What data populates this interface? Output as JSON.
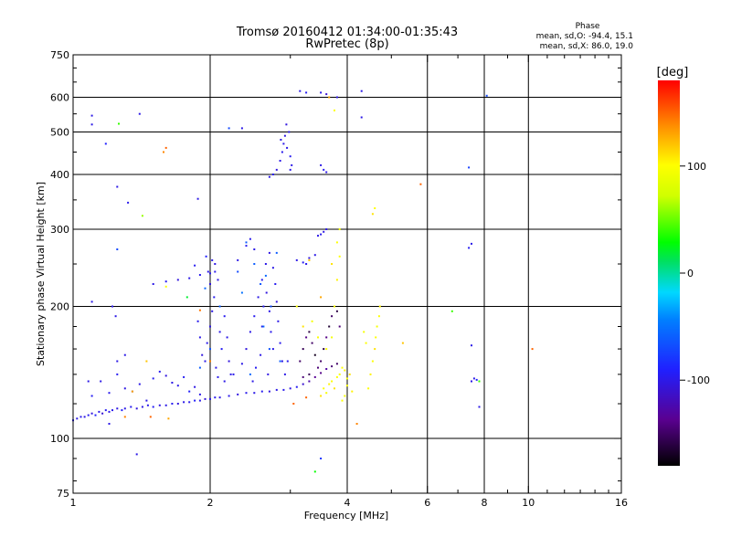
{
  "chart_data": {
    "type": "scatter",
    "title": "Tromsø 20160412 01:34:00-01:35:43",
    "subtitle": "RwPretec (8p)",
    "xlabel": "Frequency [MHz]",
    "ylabel": "Stationary phase Virtual Height [km]",
    "x_scale": "log",
    "y_scale": "log",
    "xlim": [
      1,
      16
    ],
    "ylim": [
      75,
      750
    ],
    "x_ticks": [
      1,
      2,
      4,
      6,
      8,
      10,
      16
    ],
    "x_tick_labels": [
      "1",
      "2",
      "4",
      "6",
      "8",
      "10",
      "16"
    ],
    "x_minor_ticks": [
      3,
      5,
      7,
      9,
      11,
      12,
      13,
      14,
      15
    ],
    "x_grid": [
      2,
      4,
      6,
      8,
      10
    ],
    "y_ticks": [
      75,
      100,
      200,
      300,
      400,
      500,
      600,
      750
    ],
    "y_tick_labels": [
      "75",
      "100",
      "200",
      "300",
      "400",
      "500",
      "600",
      "750"
    ],
    "y_grid": [
      100,
      200,
      300,
      400,
      500,
      600
    ],
    "grid": true,
    "stats": {
      "heading": "Phase",
      "lines": [
        "mean, sd,O: -94.4, 15.1",
        "mean, sd,X: 86.0, 19.0"
      ]
    },
    "colorbar": {
      "label": "[deg]",
      "range": [
        -180,
        180
      ],
      "ticks": [
        100,
        0,
        -100
      ],
      "tick_labels": [
        "100",
        "0",
        "-100"
      ],
      "colormap": "rainbow-black-to-red"
    },
    "points": [
      [
        1.0,
        110,
        -95
      ],
      [
        1.02,
        111,
        -100
      ],
      [
        1.04,
        112,
        -98
      ],
      [
        1.06,
        112,
        -102
      ],
      [
        1.08,
        113,
        -96
      ],
      [
        1.1,
        114,
        -104
      ],
      [
        1.12,
        113,
        -90
      ],
      [
        1.14,
        115,
        -100
      ],
      [
        1.16,
        114,
        -108
      ],
      [
        1.18,
        116,
        -95
      ],
      [
        1.2,
        115,
        -100
      ],
      [
        1.22,
        116,
        -98
      ],
      [
        1.25,
        117,
        -102
      ],
      [
        1.28,
        116,
        -92
      ],
      [
        1.3,
        117,
        -100
      ],
      [
        1.34,
        118,
        -96
      ],
      [
        1.38,
        117,
        -104
      ],
      [
        1.42,
        118,
        -100
      ],
      [
        1.46,
        119,
        -98
      ],
      [
        1.5,
        118,
        -94
      ],
      [
        1.55,
        119,
        -102
      ],
      [
        1.6,
        119,
        -100
      ],
      [
        1.65,
        120,
        -96
      ],
      [
        1.7,
        120,
        -104
      ],
      [
        1.75,
        121,
        -100
      ],
      [
        1.8,
        121,
        -98
      ],
      [
        1.85,
        122,
        -92
      ],
      [
        1.9,
        122,
        -100
      ],
      [
        1.95,
        123,
        -106
      ],
      [
        2.0,
        123,
        -100
      ],
      [
        2.05,
        124,
        -97
      ],
      [
        2.1,
        124,
        -101
      ],
      [
        2.2,
        125,
        -99
      ],
      [
        2.3,
        126,
        -103
      ],
      [
        2.4,
        127,
        -98
      ],
      [
        2.5,
        127,
        -100
      ],
      [
        2.6,
        128,
        -96
      ],
      [
        2.7,
        128,
        -104
      ],
      [
        2.8,
        129,
        -100
      ],
      [
        2.9,
        129,
        -98
      ],
      [
        3.0,
        130,
        -102
      ],
      [
        3.1,
        131,
        -95
      ],
      [
        3.2,
        133,
        -110
      ],
      [
        3.3,
        135,
        -125
      ],
      [
        3.4,
        138,
        -135
      ],
      [
        3.5,
        141,
        -140
      ],
      [
        3.6,
        144,
        -130
      ],
      [
        3.7,
        146,
        -145
      ],
      [
        3.8,
        148,
        -150
      ],
      [
        1.1,
        125,
        -95
      ],
      [
        1.2,
        127,
        -98
      ],
      [
        1.3,
        130,
        -102
      ],
      [
        1.4,
        133,
        -100
      ],
      [
        1.5,
        137,
        -96
      ],
      [
        1.6,
        139,
        -104
      ],
      [
        1.7,
        132,
        -100
      ],
      [
        1.8,
        128,
        -92
      ],
      [
        1.9,
        126,
        -100
      ],
      [
        1.15,
        135,
        -100
      ],
      [
        1.25,
        140,
        -96
      ],
      [
        1.35,
        128,
        -104
      ],
      [
        1.45,
        122,
        -100
      ],
      [
        1.55,
        142,
        -98
      ],
      [
        1.65,
        134,
        -100
      ],
      [
        1.75,
        138,
        -95
      ],
      [
        1.85,
        131,
        -102
      ],
      [
        1.95,
        150,
        -100
      ],
      [
        1.97,
        165,
        -98
      ],
      [
        2.0,
        180,
        -102
      ],
      [
        2.02,
        195,
        -100
      ],
      [
        2.04,
        210,
        -96
      ],
      [
        2.0,
        225,
        -104
      ],
      [
        1.98,
        240,
        -100
      ],
      [
        1.96,
        260,
        -90
      ],
      [
        2.02,
        255,
        -100
      ],
      [
        2.05,
        240,
        -98
      ],
      [
        2.08,
        230,
        -102
      ],
      [
        2.1,
        175,
        -100
      ],
      [
        2.12,
        160,
        -95
      ],
      [
        2.06,
        145,
        -100
      ],
      [
        2.08,
        138,
        -98
      ],
      [
        1.92,
        155,
        -104
      ],
      [
        1.9,
        170,
        -100
      ],
      [
        2.15,
        190,
        -96
      ],
      [
        2.18,
        170,
        -100
      ],
      [
        2.2,
        150,
        -104
      ],
      [
        2.22,
        140,
        -100
      ],
      [
        1.88,
        185,
        -98
      ],
      [
        1.5,
        225,
        -100
      ],
      [
        1.6,
        228,
        -96
      ],
      [
        1.7,
        230,
        -104
      ],
      [
        1.8,
        232,
        -100
      ],
      [
        1.9,
        236,
        -98
      ],
      [
        2.0,
        238,
        -100
      ],
      [
        2.05,
        250,
        -102
      ],
      [
        1.85,
        248,
        -96
      ],
      [
        2.15,
        135,
        -100
      ],
      [
        2.25,
        140,
        -98
      ],
      [
        2.35,
        148,
        -100
      ],
      [
        2.4,
        160,
        -104
      ],
      [
        2.45,
        175,
        -100
      ],
      [
        2.5,
        190,
        -96
      ],
      [
        2.55,
        210,
        -100
      ],
      [
        2.6,
        230,
        -98
      ],
      [
        2.65,
        250,
        -100
      ],
      [
        2.7,
        265,
        -102
      ],
      [
        2.75,
        245,
        -100
      ],
      [
        2.78,
        225,
        -96
      ],
      [
        2.8,
        205,
        -104
      ],
      [
        2.82,
        185,
        -100
      ],
      [
        2.85,
        165,
        -98
      ],
      [
        2.88,
        150,
        -100
      ],
      [
        2.6,
        180,
        -100
      ],
      [
        2.62,
        200,
        -96
      ],
      [
        2.66,
        215,
        -104
      ],
      [
        2.7,
        195,
        -100
      ],
      [
        2.72,
        175,
        -98
      ],
      [
        2.75,
        160,
        -100
      ],
      [
        2.68,
        140,
        -102
      ],
      [
        2.58,
        155,
        -100
      ],
      [
        2.52,
        145,
        -96
      ],
      [
        2.48,
        135,
        -100
      ],
      [
        2.92,
        140,
        -100
      ],
      [
        2.96,
        150,
        -98
      ],
      [
        2.5,
        270,
        -100
      ],
      [
        2.4,
        275,
        -96
      ],
      [
        2.3,
        255,
        -100
      ],
      [
        2.45,
        285,
        -98
      ],
      [
        2.7,
        395,
        -100
      ],
      [
        2.75,
        400,
        -96
      ],
      [
        2.8,
        410,
        -104
      ],
      [
        2.85,
        430,
        -100
      ],
      [
        2.88,
        450,
        -98
      ],
      [
        2.9,
        470,
        -100
      ],
      [
        2.92,
        490,
        -102
      ],
      [
        2.95,
        460,
        -100
      ],
      [
        3.0,
        440,
        -96
      ],
      [
        3.02,
        420,
        -100
      ],
      [
        2.98,
        500,
        -98
      ],
      [
        2.86,
        480,
        -100
      ],
      [
        2.94,
        520,
        -104
      ],
      [
        3.0,
        410,
        -100
      ],
      [
        3.1,
        255,
        -100
      ],
      [
        3.2,
        252,
        -96
      ],
      [
        3.3,
        258,
        -104
      ],
      [
        3.4,
        262,
        -100
      ],
      [
        3.25,
        250,
        -98
      ],
      [
        3.45,
        290,
        -100
      ],
      [
        3.5,
        292,
        -98
      ],
      [
        3.55,
        296,
        -102
      ],
      [
        3.6,
        300,
        -100
      ],
      [
        3.15,
        150,
        -150
      ],
      [
        3.2,
        160,
        -155
      ],
      [
        3.25,
        170,
        -140
      ],
      [
        3.3,
        175,
        -160
      ],
      [
        3.35,
        165,
        -150
      ],
      [
        3.4,
        155,
        -170
      ],
      [
        3.45,
        145,
        -145
      ],
      [
        3.5,
        150,
        -150
      ],
      [
        3.55,
        160,
        -160
      ],
      [
        3.6,
        170,
        -140
      ],
      [
        3.65,
        180,
        -165
      ],
      [
        3.7,
        190,
        -150
      ],
      [
        3.75,
        200,
        -150
      ],
      [
        3.8,
        195,
        -160
      ],
      [
        3.85,
        180,
        -145
      ],
      [
        3.2,
        138,
        -145
      ],
      [
        3.3,
        140,
        -155
      ],
      [
        3.15,
        620,
        -100
      ],
      [
        3.25,
        615,
        -95
      ],
      [
        3.5,
        615,
        -100
      ],
      [
        3.6,
        610,
        -110
      ],
      [
        3.8,
        600,
        -100
      ],
      [
        4.3,
        620,
        -100
      ],
      [
        4.3,
        540,
        -100
      ],
      [
        3.5,
        420,
        -100
      ],
      [
        3.55,
        410,
        -96
      ],
      [
        3.6,
        405,
        -100
      ],
      [
        1.1,
        520,
        -100
      ],
      [
        1.1,
        545,
        -100
      ],
      [
        1.18,
        470,
        -90
      ],
      [
        1.25,
        375,
        -100
      ],
      [
        1.32,
        345,
        -98
      ],
      [
        1.4,
        550,
        -100
      ],
      [
        1.88,
        352,
        -100
      ],
      [
        2.2,
        510,
        -70
      ],
      [
        2.35,
        510,
        -100
      ],
      [
        1.25,
        270,
        -70
      ],
      [
        1.1,
        205,
        -100
      ],
      [
        1.22,
        200,
        -100
      ],
      [
        1.24,
        190,
        -100
      ],
      [
        1.3,
        155,
        -100
      ],
      [
        1.25,
        150,
        -100
      ],
      [
        1.08,
        135,
        -100
      ],
      [
        1.2,
        108,
        -100
      ],
      [
        1.38,
        92,
        -100
      ],
      [
        2.3,
        240,
        -70
      ],
      [
        2.4,
        280,
        -60
      ],
      [
        2.35,
        215,
        -50
      ],
      [
        2.5,
        250,
        -60
      ],
      [
        2.58,
        225,
        -65
      ],
      [
        2.65,
        235,
        -55
      ],
      [
        2.72,
        200,
        -70
      ],
      [
        2.8,
        265,
        -60
      ],
      [
        2.62,
        180,
        -55
      ],
      [
        2.7,
        160,
        -65
      ],
      [
        2.85,
        150,
        -60
      ],
      [
        2.45,
        140,
        -55
      ],
      [
        1.9,
        145,
        -60
      ],
      [
        2.0,
        160,
        -65
      ],
      [
        2.1,
        200,
        -60
      ],
      [
        1.95,
        220,
        -55
      ],
      [
        3.5,
        90,
        -80
      ],
      [
        7.4,
        415,
        -75
      ],
      [
        7.5,
        278,
        -100
      ],
      [
        7.4,
        272,
        -95
      ],
      [
        7.5,
        163,
        -100
      ],
      [
        7.5,
        135,
        -100
      ],
      [
        7.6,
        137,
        -100
      ],
      [
        7.7,
        136,
        -90
      ],
      [
        7.8,
        118,
        -100
      ],
      [
        8.1,
        605,
        -70
      ],
      [
        1.26,
        522,
        40
      ],
      [
        1.42,
        322,
        60
      ],
      [
        1.58,
        450,
        140
      ],
      [
        1.78,
        210,
        20
      ],
      [
        1.6,
        222,
        100
      ],
      [
        1.35,
        128,
        130
      ],
      [
        1.45,
        150,
        120
      ],
      [
        3.4,
        84,
        30
      ],
      [
        6.8,
        195,
        40
      ],
      [
        7.8,
        135,
        40
      ],
      [
        3.25,
        124,
        150
      ],
      [
        3.05,
        120,
        150
      ],
      [
        3.3,
        255,
        120
      ],
      [
        3.5,
        210,
        130
      ],
      [
        3.65,
        600,
        130
      ],
      [
        3.75,
        560,
        100
      ],
      [
        4.2,
        108,
        140
      ],
      [
        5.3,
        165,
        120
      ],
      [
        5.8,
        380,
        150
      ],
      [
        10.2,
        160,
        150
      ],
      [
        3.1,
        200,
        100
      ],
      [
        3.2,
        180,
        110
      ],
      [
        3.35,
        185,
        95
      ],
      [
        3.45,
        170,
        100
      ],
      [
        3.5,
        125,
        110
      ],
      [
        3.55,
        130,
        100
      ],
      [
        3.6,
        127,
        95
      ],
      [
        3.65,
        133,
        105
      ],
      [
        3.7,
        135,
        100
      ],
      [
        3.75,
        130,
        110
      ],
      [
        3.8,
        138,
        100
      ],
      [
        3.85,
        140,
        95
      ],
      [
        3.9,
        145,
        100
      ],
      [
        3.95,
        143,
        105
      ],
      [
        4.0,
        137,
        100
      ],
      [
        4.05,
        140,
        110
      ],
      [
        3.6,
        160,
        100
      ],
      [
        3.7,
        170,
        95
      ],
      [
        3.75,
        200,
        100
      ],
      [
        3.8,
        230,
        105
      ],
      [
        3.85,
        260,
        100
      ],
      [
        3.7,
        250,
        110
      ],
      [
        3.8,
        280,
        100
      ],
      [
        3.85,
        300,
        95
      ],
      [
        4.45,
        130,
        100
      ],
      [
        4.5,
        140,
        105
      ],
      [
        4.55,
        150,
        100
      ],
      [
        4.6,
        160,
        110
      ],
      [
        4.62,
        170,
        100
      ],
      [
        4.65,
        180,
        95
      ],
      [
        4.7,
        190,
        100
      ],
      [
        4.72,
        200,
        105
      ],
      [
        4.4,
        165,
        100
      ],
      [
        4.35,
        175,
        95
      ],
      [
        4.55,
        325,
        110
      ],
      [
        4.6,
        335,
        100
      ],
      [
        4.0,
        132,
        100
      ],
      [
        4.1,
        128,
        105
      ],
      [
        3.95,
        125,
        95
      ],
      [
        3.9,
        122,
        100
      ],
      [
        1.6,
        460,
        150
      ],
      [
        1.9,
        196,
        145
      ],
      [
        1.48,
        112,
        150
      ],
      [
        1.3,
        112,
        140
      ],
      [
        1.62,
        111,
        130
      ],
      [
        2.0,
        150,
        140
      ]
    ]
  }
}
